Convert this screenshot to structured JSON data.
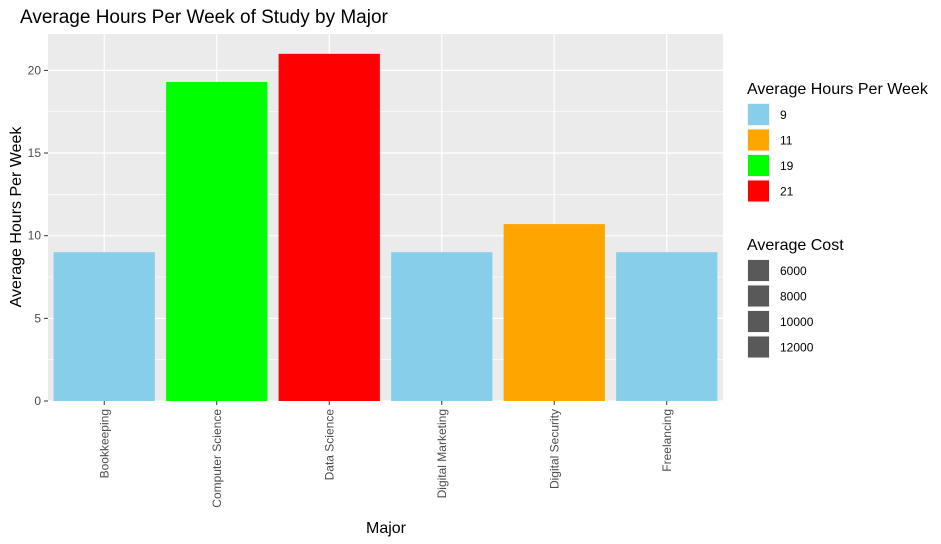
{
  "chart_data": {
    "type": "bar",
    "title": "Average Hours Per Week of Study by Major",
    "xlabel": "Major",
    "ylabel": "Average Hours Per Week",
    "categories": [
      "Bookkeeping",
      "Computer Science",
      "Data Science",
      "Digital Marketing",
      "Digital Security",
      "Freelancing"
    ],
    "values": [
      9,
      19.3,
      21,
      9,
      10.7,
      9
    ],
    "bar_colors": [
      "#87CEEB",
      "#00FF00",
      "#FF0000",
      "#87CEEB",
      "#FFA500",
      "#87CEEB"
    ],
    "ylim": [
      0,
      22.2
    ],
    "yticks": [
      0,
      5,
      10,
      15,
      20
    ],
    "grid": true,
    "background": "#EBEBEB",
    "legend_position": "right",
    "legends": [
      {
        "title": "Average Hours Per Week",
        "items": [
          {
            "label": "9",
            "color": "#87CEEB"
          },
          {
            "label": "11",
            "color": "#FFA500"
          },
          {
            "label": "19",
            "color": "#00FF00"
          },
          {
            "label": "21",
            "color": "#FF0000"
          }
        ]
      },
      {
        "title": "Average Cost",
        "items": [
          {
            "label": "6000",
            "color": "#595959"
          },
          {
            "label": "8000",
            "color": "#595959"
          },
          {
            "label": "10000",
            "color": "#595959"
          },
          {
            "label": "12000",
            "color": "#595959"
          }
        ]
      }
    ]
  }
}
